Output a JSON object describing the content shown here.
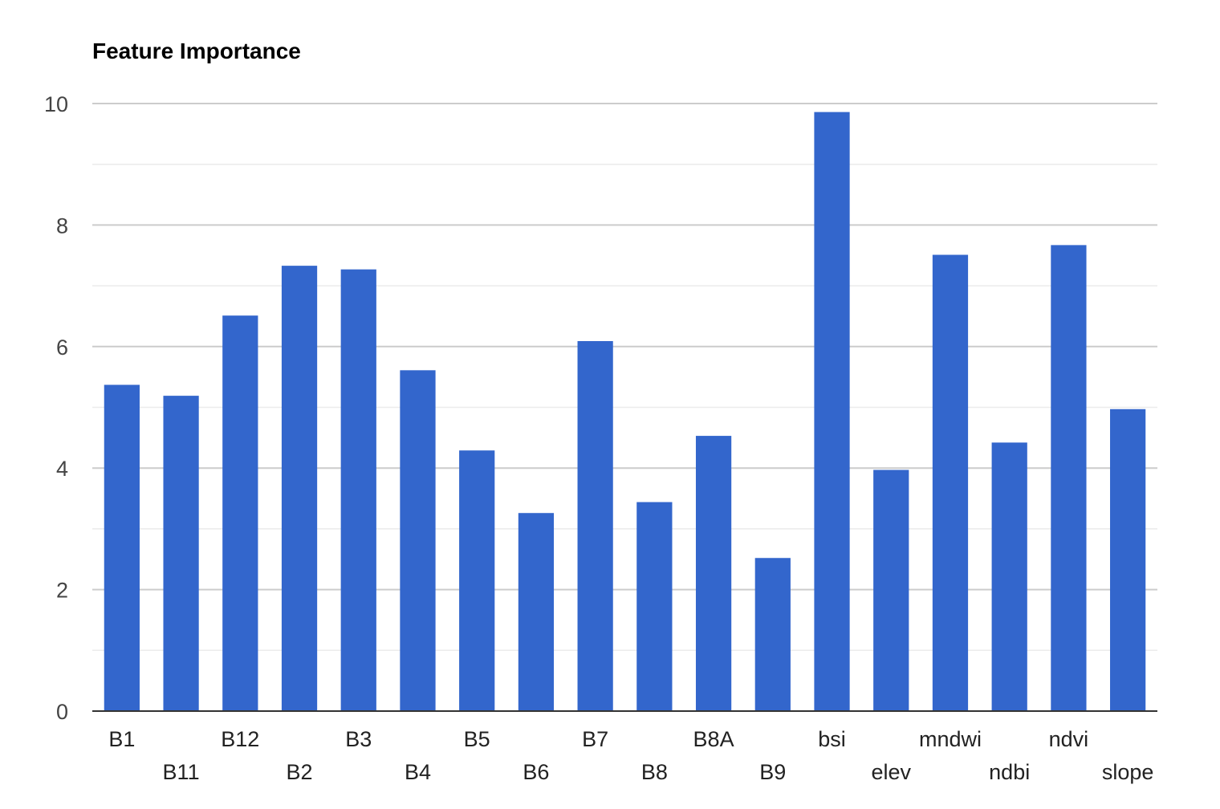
{
  "chart_data": {
    "type": "bar",
    "title": "Feature Importance",
    "xlabel": "",
    "ylabel": "",
    "categories": [
      "B1",
      "B11",
      "B12",
      "B2",
      "B3",
      "B4",
      "B5",
      "B6",
      "B7",
      "B8",
      "B8A",
      "B9",
      "bsi",
      "elev",
      "mndwi",
      "ndbi",
      "ndvi",
      "slope"
    ],
    "values": [
      5.37,
      5.19,
      6.51,
      7.33,
      7.27,
      5.61,
      4.29,
      3.26,
      6.09,
      3.44,
      4.53,
      2.52,
      9.86,
      3.97,
      7.51,
      4.42,
      7.67,
      4.97
    ],
    "ylim": [
      0,
      10
    ],
    "yticks": [
      0,
      2,
      4,
      6,
      8,
      10
    ],
    "grid": true,
    "legend": "none",
    "bar_color": "#3366cc"
  }
}
